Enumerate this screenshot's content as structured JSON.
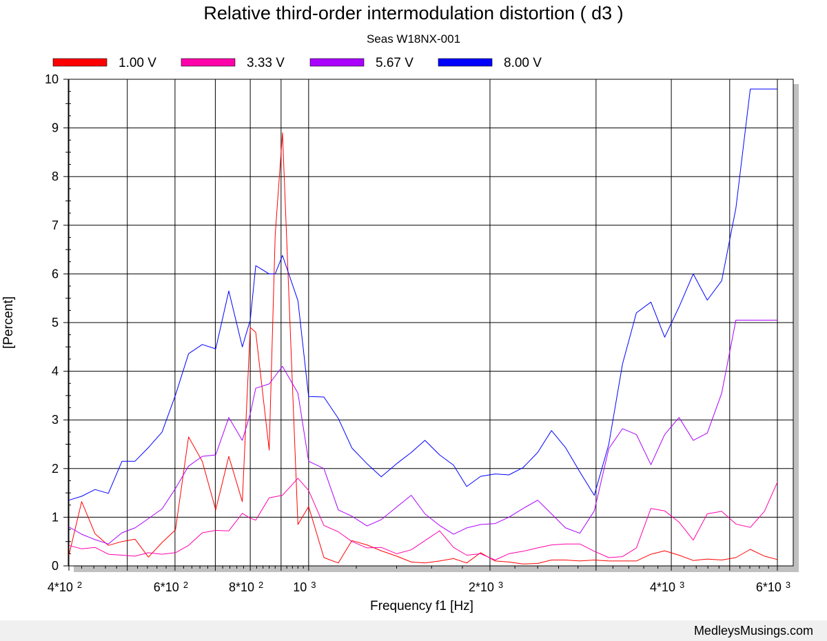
{
  "chart_data": {
    "type": "line",
    "title": "Relative third-order intermodulation distortion  ( d3 )",
    "subtitle": "Seas W18NX-001",
    "xlabel": "Frequency f1  [Hz]",
    "ylabel": "[Percent]",
    "xscale": "log",
    "xlim": [
      400,
      6000
    ],
    "ylim": [
      0,
      10
    ],
    "yticks": [
      0,
      1,
      2,
      3,
      4,
      5,
      6,
      7,
      8,
      9,
      10
    ],
    "xticks": [
      {
        "value": 400,
        "base": "4*10",
        "exp": "2"
      },
      {
        "value": 600,
        "base": "6*10",
        "exp": "2"
      },
      {
        "value": 800,
        "base": "8*10",
        "exp": "2"
      },
      {
        "value": 1000,
        "base": "10",
        "exp": "3"
      },
      {
        "value": 2000,
        "base": "2*10",
        "exp": "3"
      },
      {
        "value": 4000,
        "base": "4*10",
        "exp": "3"
      },
      {
        "value": 6000,
        "base": "6*10",
        "exp": "3"
      }
    ],
    "grid": true,
    "legend_position": "top",
    "series": [
      {
        "name": "1.00 V",
        "color": "#ff0000",
        "x": [
          400,
          420,
          442,
          465,
          490,
          515,
          542,
          571,
          601,
          632,
          666,
          701,
          737,
          776,
          800,
          817,
          860,
          880,
          905,
          960,
          1000,
          1060,
          1120,
          1180,
          1250,
          1320,
          1400,
          1480,
          1560,
          1650,
          1740,
          1830,
          1930,
          2040,
          2150,
          2270,
          2400,
          2530,
          2670,
          2820,
          2980,
          3150,
          3320,
          3500,
          3700,
          3900,
          4120,
          4350,
          4590,
          4850,
          5120,
          5410,
          5710,
          6000
        ],
        "values": [
          0.22,
          1.32,
          0.66,
          0.42,
          0.5,
          0.55,
          0.18,
          0.48,
          0.74,
          2.65,
          2.15,
          1.15,
          2.25,
          1.32,
          4.9,
          4.8,
          2.38,
          6.8,
          8.9,
          0.85,
          1.22,
          0.17,
          0.06,
          0.52,
          0.43,
          0.31,
          0.2,
          0.08,
          0.06,
          0.1,
          0.15,
          0.06,
          0.27,
          0.1,
          0.08,
          0.04,
          0.05,
          0.12,
          0.12,
          0.1,
          0.12,
          0.1,
          0.1,
          0.1,
          0.24,
          0.31,
          0.22,
          0.11,
          0.14,
          0.12,
          0.17,
          0.34,
          0.2,
          0.13
        ]
      },
      {
        "name": "3.33 V",
        "color": "#ff00aa",
        "x": [
          400,
          420,
          442,
          465,
          490,
          515,
          542,
          571,
          601,
          632,
          666,
          701,
          737,
          776,
          800,
          817,
          860,
          905,
          960,
          1000,
          1060,
          1120,
          1180,
          1250,
          1320,
          1400,
          1480,
          1560,
          1650,
          1740,
          1830,
          1930,
          2040,
          2150,
          2270,
          2400,
          2530,
          2670,
          2820,
          2980,
          3150,
          3320,
          3500,
          3700,
          3900,
          4120,
          4350,
          4590,
          4850,
          5120,
          5410,
          5710,
          6000
        ],
        "values": [
          0.42,
          0.35,
          0.38,
          0.24,
          0.22,
          0.2,
          0.27,
          0.24,
          0.27,
          0.42,
          0.68,
          0.73,
          0.72,
          1.08,
          0.98,
          0.94,
          1.4,
          1.45,
          1.8,
          1.55,
          0.83,
          0.7,
          0.5,
          0.37,
          0.38,
          0.25,
          0.33,
          0.52,
          0.72,
          0.38,
          0.22,
          0.25,
          0.12,
          0.25,
          0.3,
          0.37,
          0.43,
          0.45,
          0.45,
          0.3,
          0.17,
          0.19,
          0.37,
          1.18,
          1.13,
          0.9,
          0.53,
          1.07,
          1.12,
          0.86,
          0.79,
          1.12,
          1.72
        ]
      },
      {
        "name": "5.67 V",
        "color": "#aa00ff",
        "x": [
          400,
          420,
          442,
          465,
          490,
          515,
          542,
          571,
          601,
          632,
          666,
          701,
          737,
          776,
          800,
          817,
          860,
          905,
          960,
          1000,
          1060,
          1120,
          1180,
          1250,
          1320,
          1400,
          1480,
          1560,
          1650,
          1740,
          1830,
          1930,
          2040,
          2150,
          2270,
          2400,
          2530,
          2670,
          2820,
          2980,
          3150,
          3320,
          3500,
          3700,
          3900,
          4120,
          4350,
          4590,
          4850,
          5120,
          5410,
          5710,
          6000
        ],
        "values": [
          0.8,
          0.65,
          0.54,
          0.45,
          0.68,
          0.78,
          0.97,
          1.17,
          1.59,
          2.05,
          2.25,
          2.28,
          3.05,
          2.58,
          3.12,
          3.65,
          3.74,
          4.1,
          3.55,
          2.15,
          2.0,
          1.15,
          1.02,
          0.82,
          0.95,
          1.21,
          1.45,
          1.07,
          0.83,
          0.65,
          0.78,
          0.85,
          0.87,
          1.0,
          1.18,
          1.35,
          1.07,
          0.78,
          0.67,
          1.13,
          2.41,
          2.82,
          2.7,
          2.08,
          2.7,
          3.05,
          2.58,
          2.73,
          3.55,
          5.05,
          5.05,
          5.05,
          5.05
        ]
      },
      {
        "name": "8.00 V",
        "color": "#0000ff",
        "x": [
          400,
          420,
          442,
          465,
          490,
          515,
          542,
          571,
          601,
          632,
          666,
          701,
          737,
          776,
          800,
          817,
          860,
          880,
          905,
          960,
          1000,
          1060,
          1120,
          1180,
          1250,
          1320,
          1400,
          1480,
          1560,
          1650,
          1740,
          1830,
          1930,
          2040,
          2150,
          2270,
          2400,
          2530,
          2670,
          2820,
          2980,
          3150,
          3320,
          3500,
          3700,
          3900,
          4120,
          4350,
          4590,
          4850,
          5120,
          5410,
          5710,
          6000
        ],
        "values": [
          1.35,
          1.43,
          1.57,
          1.49,
          2.15,
          2.15,
          2.43,
          2.75,
          3.51,
          4.36,
          4.55,
          4.46,
          5.65,
          4.5,
          5.05,
          6.17,
          6.0,
          6.0,
          6.38,
          5.45,
          3.48,
          3.47,
          3.03,
          2.42,
          2.1,
          1.83,
          2.1,
          2.33,
          2.58,
          2.28,
          2.07,
          1.63,
          1.84,
          1.89,
          1.87,
          2.02,
          2.33,
          2.78,
          2.43,
          1.93,
          1.45,
          2.5,
          4.15,
          5.2,
          5.42,
          4.7,
          5.32,
          6.0,
          5.46,
          5.86,
          7.35,
          9.8,
          9.8,
          9.8
        ]
      }
    ]
  },
  "footer": {
    "watermark": "MedleysMusings.com"
  }
}
